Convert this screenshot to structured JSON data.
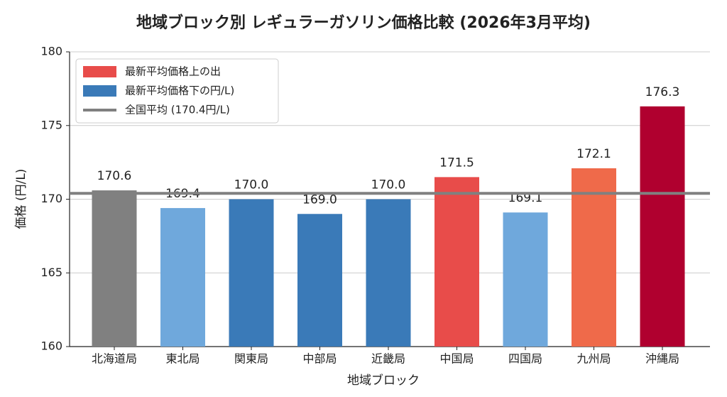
{
  "chart_data": {
    "type": "bar",
    "title": "地域ブロック別 レギュラーガソリン価格比較 (2026年3月平均)",
    "x_label": "地域ブロック",
    "y_label": "価格 (円/L)",
    "categories": [
      "北海道局",
      "東北局",
      "関東局",
      "中部局",
      "近畿局",
      "中国局",
      "四国局",
      "九州局",
      "沖縄局"
    ],
    "values": [
      170.6,
      169.4,
      170.0,
      169.0,
      170.0,
      171.5,
      169.1,
      172.1,
      176.3
    ],
    "value_labels": [
      "170.6",
      "169.4",
      "170.0",
      "169.0",
      "170.0",
      "171.5",
      "169.1",
      "172.1",
      "176.3"
    ],
    "colors": [
      "#808080",
      "#6fa8dc",
      "#3a7ab8",
      "#3a7ab8",
      "#3a7ab8",
      "#e84c4a",
      "#6fa8dc",
      "#ef6a4a",
      "#b0002f"
    ],
    "reference_line": {
      "value": 170.4,
      "color": "#808080"
    },
    "legend": [
      {
        "label": "最新平均価格上の出",
        "color": "#e84c4a",
        "kind": "patch"
      },
      {
        "label": "最新平均価格下の円/L)",
        "color": "#3a7ab8",
        "kind": "patch"
      },
      {
        "label": "全国平均 (170.4円/L)",
        "color": "#808080",
        "kind": "line"
      }
    ],
    "legend_position": "upper-left",
    "ylim": [
      160,
      180
    ],
    "yticks": [
      160,
      165,
      170,
      175,
      180
    ],
    "grid": true
  }
}
